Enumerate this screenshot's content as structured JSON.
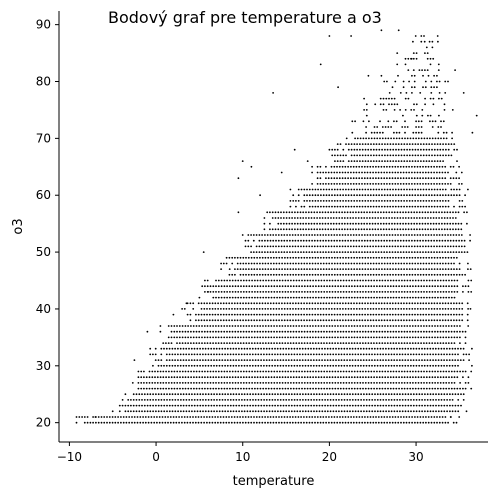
{
  "chart_data": {
    "type": "scatter",
    "title": "Bodový graf pre temperature a o3",
    "xlabel": "temperature",
    "ylabel": "o3",
    "xlim": [
      -11.2,
      38.3
    ],
    "ylim": [
      16.6,
      92.4
    ],
    "xticks": [
      -10,
      0,
      10,
      20,
      30
    ],
    "yticks": [
      20,
      30,
      40,
      50,
      60,
      70,
      80,
      90
    ],
    "grid": false,
    "marker_color": "#000000",
    "bands": [
      {
        "x": [
          -9.5,
          35.0
        ],
        "ymin": 20,
        "ymax": 22
      },
      {
        "x": [
          -4.5,
          36.0
        ],
        "ymin": 22,
        "ymax": 26
      },
      {
        "x": [
          -3.0,
          36.5
        ],
        "ymin": 26,
        "ymax": 30
      },
      {
        "x": [
          -1.0,
          36.5
        ],
        "ymin": 30,
        "ymax": 34
      },
      {
        "x": [
          0.5,
          36.5
        ],
        "ymin": 34,
        "ymax": 38
      },
      {
        "x": [
          3.0,
          36.5
        ],
        "ymin": 38,
        "ymax": 42
      },
      {
        "x": [
          5.0,
          36.5
        ],
        "ymin": 42,
        "ymax": 46
      },
      {
        "x": [
          7.5,
          36.5
        ],
        "ymin": 46,
        "ymax": 50
      },
      {
        "x": [
          10.0,
          36.5
        ],
        "ymin": 50,
        "ymax": 54
      },
      {
        "x": [
          12.5,
          36.0
        ],
        "ymin": 54,
        "ymax": 58
      },
      {
        "x": [
          15.5,
          36.0
        ],
        "ymin": 58,
        "ymax": 62
      },
      {
        "x": [
          18.0,
          35.5
        ],
        "ymin": 62,
        "ymax": 66
      },
      {
        "x": [
          20.0,
          35.0
        ],
        "ymin": 66,
        "ymax": 70
      },
      {
        "x": [
          22.0,
          35.0
        ],
        "ymin": 70,
        "ymax": 74
      },
      {
        "x": [
          24.0,
          34.5
        ],
        "ymin": 74,
        "ymax": 78
      },
      {
        "x": [
          26.0,
          34.0
        ],
        "ymin": 78,
        "ymax": 82
      },
      {
        "x": [
          27.5,
          33.5
        ],
        "ymin": 82,
        "ymax": 86
      },
      {
        "x": [
          29.0,
          33.0
        ],
        "ymin": 86,
        "ymax": 89
      }
    ],
    "outliers": [
      [
        -7.0,
        21
      ],
      [
        -5.0,
        22
      ],
      [
        -2.5,
        31
      ],
      [
        -1.0,
        36
      ],
      [
        0.5,
        37
      ],
      [
        2.0,
        39
      ],
      [
        3.5,
        41
      ],
      [
        5.5,
        50
      ],
      [
        6.0,
        43
      ],
      [
        8.5,
        47
      ],
      [
        9.5,
        57
      ],
      [
        9.5,
        63
      ],
      [
        10.0,
        66
      ],
      [
        11.0,
        65
      ],
      [
        12.0,
        60
      ],
      [
        13.5,
        78
      ],
      [
        14.5,
        64
      ],
      [
        16.0,
        68
      ],
      [
        17.5,
        66
      ],
      [
        19.0,
        83
      ],
      [
        20.0,
        88
      ],
      [
        21.0,
        79
      ],
      [
        22.5,
        88
      ],
      [
        24.0,
        75
      ],
      [
        24.5,
        81
      ],
      [
        26.0,
        89
      ],
      [
        28.0,
        89
      ],
      [
        29.5,
        84
      ],
      [
        31.0,
        87
      ],
      [
        32.5,
        88
      ],
      [
        34.5,
        82
      ],
      [
        35.5,
        78
      ],
      [
        37.0,
        74
      ],
      [
        36.5,
        71
      ],
      [
        36.0,
        40
      ],
      [
        34.0,
        21
      ]
    ]
  }
}
